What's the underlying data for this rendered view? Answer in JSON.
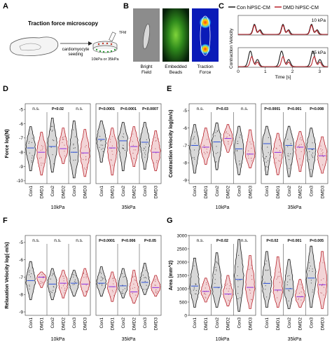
{
  "panel_letters": [
    "A",
    "B",
    "C",
    "D",
    "E",
    "F",
    "G"
  ],
  "panel_a": {
    "title": "Traction force microscopy",
    "step_label_line1": "cardiomyocyte",
    "step_label_line2": "seeding",
    "tfm_label": "TFM",
    "substrate_label": "10kPa or 35kPa"
  },
  "panel_b": {
    "labels": [
      [
        "Bright",
        "Field"
      ],
      [
        "Embedded",
        "Beads"
      ],
      [
        "Traction",
        "Force"
      ]
    ]
  },
  "colors": {
    "con": "#1a1a1a",
    "dmd": "#b8242c",
    "con_fill": "#d8d8d8",
    "dmd_fill": "#f3d4d6",
    "median_con": "#2b4fd8",
    "median_dmd": "#8a2be2"
  },
  "chart_data": [
    {
      "id": "C",
      "type": "line",
      "legend": [
        "Con hiPSC-CM",
        "DMD hiPSC-CM"
      ],
      "ylabel": "Contraction Velocity",
      "xlabel": "Time [s]",
      "xticks": [
        0,
        1,
        2,
        3
      ],
      "xlim": [
        0,
        3.3
      ],
      "subpanels": [
        {
          "label": "10 kPa",
          "series": [
            {
              "name": "Con hiPSC-CM",
              "peaks": [
                0.6,
                1.65,
                2.7
              ],
              "amps": [
                0.55,
                0.55,
                0.55
              ],
              "width": 0.08
            },
            {
              "name": "DMD hiPSC-CM",
              "peaks": [
                0.6,
                1.65,
                2.7
              ],
              "amps": [
                0.5,
                0.5,
                0.5
              ],
              "width": 0.07
            }
          ]
        },
        {
          "label": "35 kPa",
          "series": [
            {
              "name": "Con hiPSC-CM",
              "peaks": [
                0.45,
                1.6,
                2.75
              ],
              "amps": [
                0.85,
                0.85,
                0.85
              ],
              "width": 0.1
            },
            {
              "name": "DMD hiPSC-CM",
              "peaks": [
                0.5,
                1.65,
                2.8
              ],
              "amps": [
                0.55,
                0.55,
                0.55
              ],
              "width": 0.08
            }
          ]
        }
      ]
    },
    {
      "id": "D",
      "type": "violin",
      "ylabel": "Force log(N)",
      "yticks": [
        -10,
        -9,
        -8,
        -7,
        -6,
        -5
      ],
      "ylim": [
        -10.2,
        -4.6
      ],
      "categories": [
        "Con1",
        "DMD1",
        "Con2",
        "DMD2",
        "Con3",
        "DMD3"
      ],
      "groups": [
        {
          "name": "10kPa",
          "pvalues": [
            "n.s.",
            "P<0.02",
            "n.s."
          ],
          "median": [
            -7.7,
            -8.0,
            -7.6,
            -7.75,
            -8.0,
            -8.05
          ],
          "min": [
            -9.3,
            -9.6,
            -9.4,
            -8.8,
            -9.8,
            -9.7
          ],
          "max": [
            -6.2,
            -6.6,
            -5.6,
            -6.3,
            -5.8,
            -6.4
          ]
        },
        {
          "name": "35kPa",
          "pvalues": [
            "P<0.0001",
            "P<0.0001",
            "P<0.0007"
          ],
          "median": [
            -7.1,
            -7.7,
            -7.2,
            -7.6,
            -7.3,
            -8.0
          ],
          "min": [
            -8.7,
            -9.6,
            -9.3,
            -9.0,
            -9.2,
            -9.3
          ],
          "max": [
            -5.8,
            -6.3,
            -5.9,
            -6.2,
            -5.9,
            -6.5
          ]
        }
      ]
    },
    {
      "id": "E",
      "type": "violin",
      "ylabel": "Contraction Velocity log(m/s)",
      "yticks": [
        -9,
        -8,
        -7,
        -6,
        -5
      ],
      "ylim": [
        -9.2,
        -4.6
      ],
      "categories": [
        "Con1",
        "DMD1",
        "Con2",
        "DMD2",
        "Con3",
        "DMD3"
      ],
      "groups": [
        {
          "name": "10kPa",
          "pvalues": [
            "n.s.",
            "P<0.03",
            "n.s."
          ],
          "median": [
            -7.0,
            -7.1,
            -6.8,
            -6.6,
            -7.2,
            -7.5
          ],
          "min": [
            -8.6,
            -8.1,
            -8.4,
            -7.4,
            -8.7,
            -8.3
          ],
          "max": [
            -5.8,
            -6.0,
            -5.7,
            -5.8,
            -5.9,
            -6.1
          ]
        },
        {
          "name": "35kPa",
          "pvalues": [
            "P<0.0001",
            "P<0.001",
            "P<0.008"
          ],
          "median": [
            -6.9,
            -7.4,
            -7.0,
            -7.1,
            -7.2,
            -7.6
          ],
          "min": [
            -8.7,
            -8.7,
            -8.8,
            -8.5,
            -8.8,
            -8.6
          ],
          "max": [
            -5.9,
            -6.3,
            -5.9,
            -6.2,
            -6.0,
            -6.5
          ]
        }
      ]
    },
    {
      "id": "F",
      "type": "violin",
      "ylabel": "Relaxation Velocity log(-m/s)",
      "yticks": [
        -9,
        -8,
        -7,
        -6,
        -5
      ],
      "ylim": [
        -9.2,
        -4.6
      ],
      "categories": [
        "Con1",
        "DMD1",
        "Con2",
        "DMD2",
        "Con3",
        "DMD3"
      ],
      "groups": [
        {
          "name": "10kPa",
          "pvalues": [
            "n.s.",
            "n.s.",
            "n.s."
          ],
          "median": [
            -7.2,
            -7.0,
            -7.4,
            -7.35,
            -7.35,
            -7.4
          ],
          "min": [
            -8.3,
            -7.6,
            -8.3,
            -8.2,
            -8.1,
            -8.1
          ],
          "max": [
            -6.1,
            -6.7,
            -6.5,
            -6.6,
            -6.6,
            -6.5
          ]
        },
        {
          "name": "35kPa",
          "pvalues": [
            "P<0.0001",
            "P<0.006",
            "P<0.05"
          ],
          "median": [
            -7.35,
            -7.55,
            -7.5,
            -7.85,
            -7.3,
            -7.6
          ],
          "min": [
            -8.1,
            -8.4,
            -8.2,
            -8.5,
            -8.0,
            -8.1
          ],
          "max": [
            -6.4,
            -6.7,
            -6.5,
            -6.6,
            -6.2,
            -6.9
          ]
        }
      ]
    },
    {
      "id": "G",
      "type": "violin",
      "ylabel": "Area (mm^2)",
      "yticks": [
        0,
        500,
        1000,
        1500,
        2000,
        2500,
        3000
      ],
      "ylim": [
        0,
        3000
      ],
      "categories": [
        "Con1",
        "DMD1",
        "Con2",
        "DMD2",
        "Con3",
        "DMD3"
      ],
      "groups": [
        {
          "name": "10kPa",
          "pvalues": [
            "n.s.",
            "P<0.02",
            "n.s."
          ],
          "median": [
            1100,
            900,
            1050,
            800,
            1350,
            1050
          ],
          "min": [
            300,
            500,
            300,
            350,
            150,
            250
          ],
          "max": [
            2150,
            1400,
            2350,
            1500,
            2850,
            2250
          ]
        },
        {
          "name": "35kPa",
          "pvalues": [
            "P<0.02",
            "P<0.001",
            "P<0.005"
          ],
          "median": [
            1200,
            950,
            1000,
            700,
            1400,
            1150
          ],
          "min": [
            300,
            300,
            250,
            300,
            300,
            250
          ],
          "max": [
            2400,
            2200,
            2100,
            1350,
            2600,
            2400
          ]
        }
      ]
    }
  ]
}
